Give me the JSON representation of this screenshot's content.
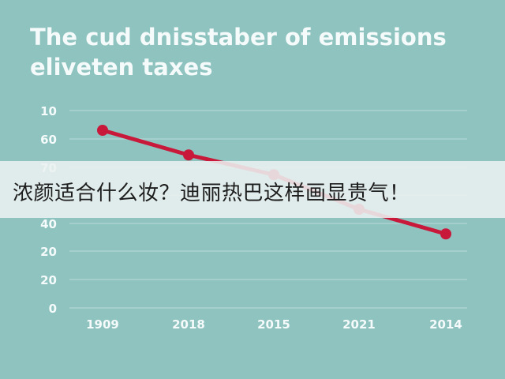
{
  "chart_data": {
    "type": "line",
    "title_line1": "The cud dnisstaber of emissions",
    "title_line2": "eliveten taxes",
    "categories": [
      "1909",
      "2018",
      "2015",
      "2021",
      "2014"
    ],
    "y_tick_labels": [
      "10",
      "60",
      "70",
      "",
      "40",
      "20",
      "20",
      "0"
    ],
    "values": [
      72,
      62,
      54,
      40,
      30
    ],
    "line_color": "#c8193a",
    "grid": true
  },
  "overlay": {
    "text": "浓颜适合什么妆？迪丽热巴这样画显贵气！"
  }
}
